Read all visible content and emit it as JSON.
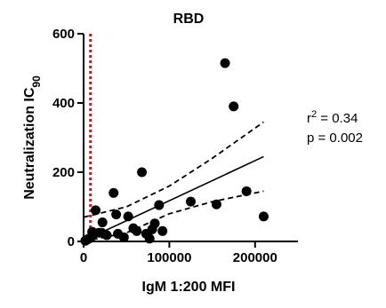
{
  "chart_data": {
    "type": "scatter",
    "title": "RBD",
    "xlabel": "IgM 1:200 MFI",
    "ylabel_main": "Neutralization IC",
    "ylabel_sub": "90",
    "xlim": [
      0,
      250000
    ],
    "ylim": [
      0,
      600
    ],
    "xticks": [
      0,
      100000,
      200000
    ],
    "xtick_labels": [
      "0",
      "100000",
      "200000"
    ],
    "yticks": [
      0,
      200,
      400,
      600
    ],
    "ytick_labels": [
      "0",
      "200",
      "400",
      "600"
    ],
    "points": [
      {
        "x": 2000,
        "y": 2
      },
      {
        "x": 4000,
        "y": 5
      },
      {
        "x": 6000,
        "y": 8
      },
      {
        "x": 8000,
        "y": 10
      },
      {
        "x": 10000,
        "y": 28
      },
      {
        "x": 12000,
        "y": 22
      },
      {
        "x": 14000,
        "y": 90
      },
      {
        "x": 18000,
        "y": 25
      },
      {
        "x": 21000,
        "y": 25
      },
      {
        "x": 22000,
        "y": 55
      },
      {
        "x": 27000,
        "y": 18
      },
      {
        "x": 35000,
        "y": 140
      },
      {
        "x": 38000,
        "y": 78
      },
      {
        "x": 40000,
        "y": 22
      },
      {
        "x": 47000,
        "y": 12
      },
      {
        "x": 52000,
        "y": 72
      },
      {
        "x": 58000,
        "y": 38
      },
      {
        "x": 62000,
        "y": 30
      },
      {
        "x": 68000,
        "y": 200
      },
      {
        "x": 73000,
        "y": 22
      },
      {
        "x": 77000,
        "y": 8
      },
      {
        "x": 80000,
        "y": 35
      },
      {
        "x": 83000,
        "y": 52
      },
      {
        "x": 88000,
        "y": 105
      },
      {
        "x": 92000,
        "y": 30
      },
      {
        "x": 125000,
        "y": 115
      },
      {
        "x": 155000,
        "y": 107
      },
      {
        "x": 165000,
        "y": 515
      },
      {
        "x": 175000,
        "y": 390
      },
      {
        "x": 190000,
        "y": 145
      },
      {
        "x": 210000,
        "y": 72
      }
    ],
    "regression": {
      "x": [
        0,
        210000
      ],
      "y": [
        2,
        245
      ]
    },
    "ci_upper": {
      "x": [
        0,
        50000,
        100000,
        150000,
        210000
      ],
      "y": [
        70,
        100,
        160,
        240,
        345
      ]
    },
    "ci_lower": {
      "x": [
        0,
        50000,
        100000,
        150000,
        210000
      ],
      "y": [
        -20,
        25,
        80,
        115,
        145
      ]
    },
    "reference_line_x": 8000,
    "annotations": {
      "r2_prefix": "r",
      "r2_sup": "2",
      "r2_suffix": " = 0.34",
      "p_value": "p = 0.002"
    },
    "grid": false,
    "legend": "none",
    "colors": {
      "points": "#000000",
      "reference_line": "#b22222",
      "lines": "#000000"
    }
  }
}
